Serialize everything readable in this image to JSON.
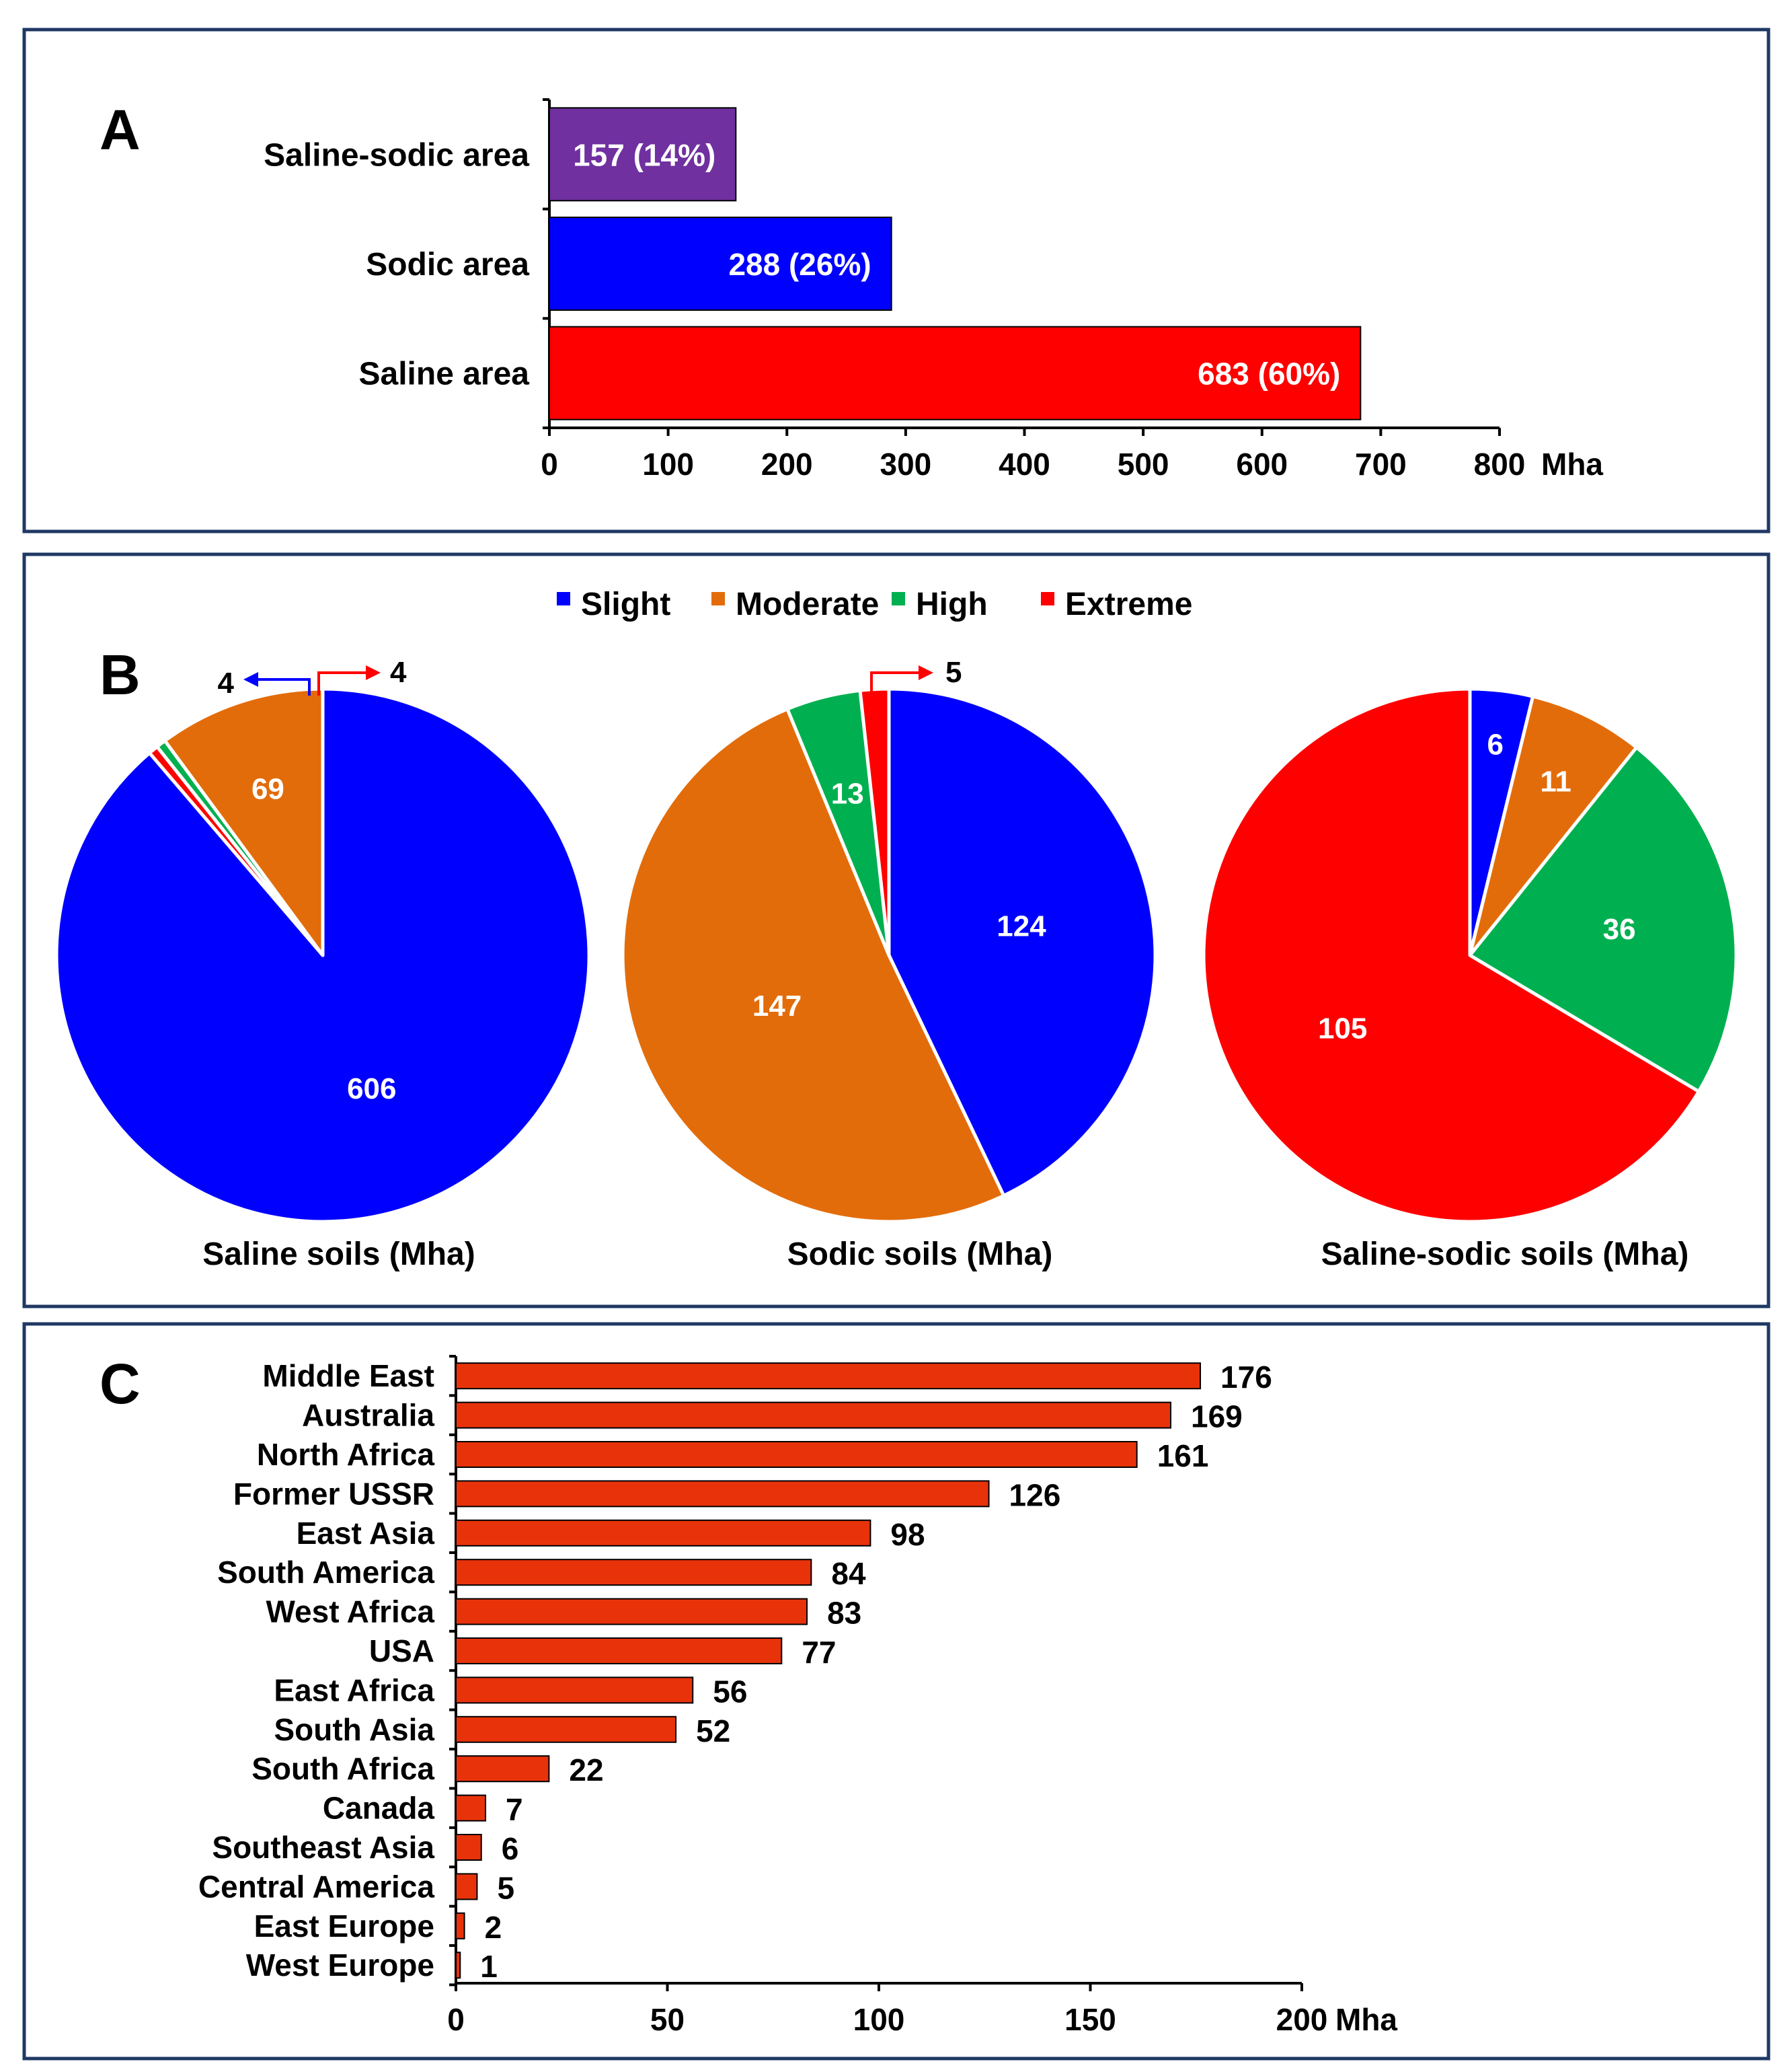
{
  "chart_data": [
    {
      "panel": "A",
      "type": "bar",
      "orientation": "horizontal",
      "categories": [
        "Saline-sodic area",
        "Sodic area",
        "Saline area"
      ],
      "values": [
        157,
        288,
        683
      ],
      "percent_labels": [
        "157 (14%)",
        "288 (26%)",
        "683 (60%)"
      ],
      "colors": [
        "#7030A0",
        "#0000FF",
        "#FF0000"
      ],
      "xlim": [
        0,
        800
      ],
      "xticks": [
        0,
        100,
        200,
        300,
        400,
        500,
        600,
        700,
        800
      ],
      "xlabel": "Mha",
      "title": ""
    },
    {
      "panel": "B",
      "type": "pie",
      "legend": [
        {
          "label": "Slight",
          "color": "#0000FF"
        },
        {
          "label": "Moderate",
          "color": "#E36C0A"
        },
        {
          "label": "High",
          "color": "#00B050"
        },
        {
          "label": "Extreme",
          "color": "#FF0000"
        }
      ],
      "pies": [
        {
          "title": "Saline soils (Mha)",
          "values": [
            606,
            69,
            4,
            4
          ]
        },
        {
          "title": "Sodic soils (Mha)",
          "values": [
            124,
            147,
            13,
            5
          ]
        },
        {
          "title": "Saline-sodic soils (Mha)",
          "values": [
            6,
            11,
            36,
            105
          ]
        }
      ]
    },
    {
      "panel": "C",
      "type": "bar",
      "orientation": "horizontal",
      "categories": [
        "Middle East",
        "Australia",
        "North  Africa",
        "Former  USSR",
        "East Asia",
        "South America",
        "West Africa",
        "USA",
        "East Africa",
        "South Asia",
        "South Africa",
        "Canada",
        "Southeast  Asia",
        "Central  America",
        "East Europe",
        "West Europe"
      ],
      "values": [
        176,
        169,
        161,
        126,
        98,
        84,
        83,
        77,
        56,
        52,
        22,
        7,
        6,
        5,
        2,
        1
      ],
      "color": "#E8330A",
      "xlim": [
        0,
        200
      ],
      "xticks": [
        0,
        50,
        100,
        150,
        200
      ],
      "xlabel": "Mha",
      "title": ""
    }
  ]
}
